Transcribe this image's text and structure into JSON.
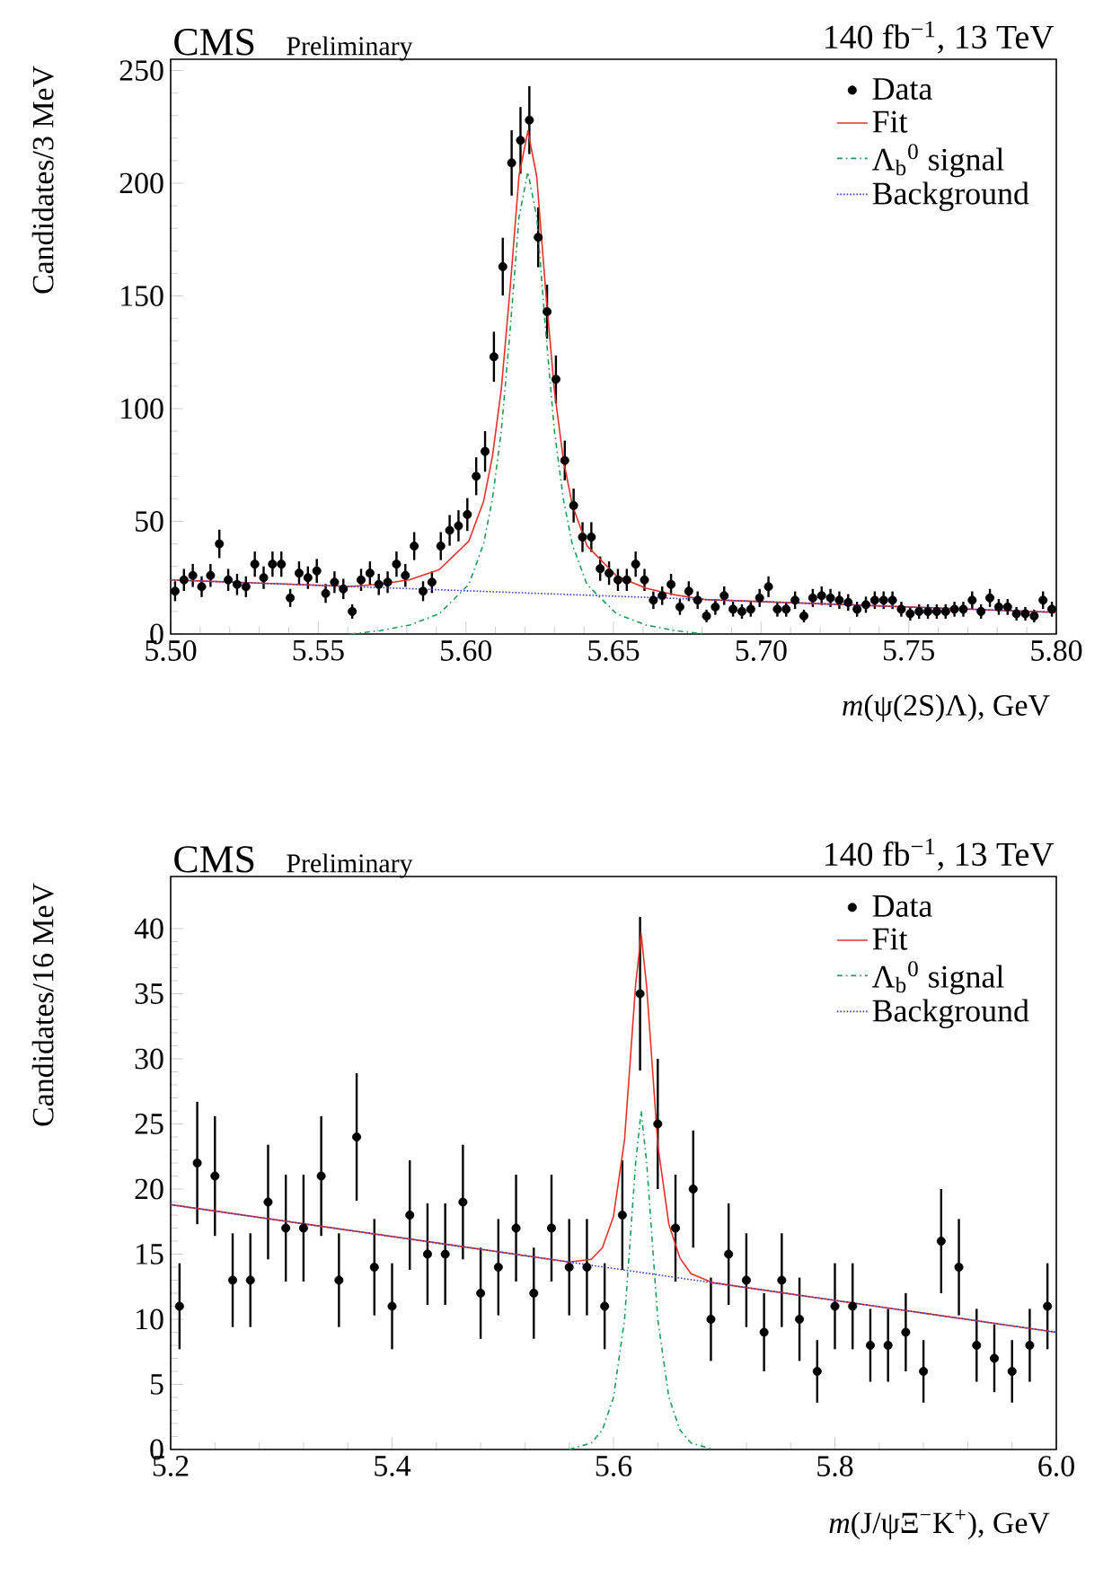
{
  "chart_data": [
    {
      "type": "scatter",
      "title": "CMS",
      "subtitle": "Preliminary",
      "annotations": [
        "140 fb$^{−1}$, 13 TeV"
      ],
      "xlabel": "*m*(ψ(2S)Λ), GeV",
      "ylabel": "Candidates/3 MeV",
      "xlim": [
        5.5,
        5.8
      ],
      "ylim": [
        0,
        255
      ],
      "xticks": [
        {
          "value": 5.5,
          "label": "5.50"
        },
        5.55,
        {
          "value": 5.6,
          "label": "5.60"
        },
        5.65,
        {
          "value": 5.7,
          "label": "5.70"
        },
        5.75,
        {
          "value": 5.8,
          "label": "5.80"
        }
      ],
      "yticks": [
        0,
        50,
        100,
        150,
        200,
        250
      ],
      "legend": "top right",
      "series": [
        {
          "name": "Data",
          "type": "scatter",
          "marker": "circle",
          "color": "#000000",
          "x": [
            5.5015,
            5.5045,
            5.5075,
            5.5105,
            5.5135,
            5.5165,
            5.5195,
            5.5225,
            5.5255,
            5.5285,
            5.5315,
            5.5345,
            5.5375,
            5.5405,
            5.5435,
            5.5465,
            5.5495,
            5.5525,
            5.5555,
            5.5585,
            5.5615,
            5.5645,
            5.5675,
            5.5705,
            5.5735,
            5.5765,
            5.5795,
            5.5825,
            5.5855,
            5.5885,
            5.5915,
            5.5945,
            5.5975,
            5.6005,
            5.6035,
            5.6065,
            5.6095,
            5.6125,
            5.6155,
            5.6185,
            5.6215,
            5.6245,
            5.6275,
            5.6305,
            5.6335,
            5.6365,
            5.6395,
            5.6425,
            5.6455,
            5.6485,
            5.6515,
            5.6545,
            5.6575,
            5.6605,
            5.6635,
            5.6665,
            5.6695,
            5.6725,
            5.6755,
            5.6785,
            5.6815,
            5.6845,
            5.6875,
            5.6905,
            5.6935,
            5.6965,
            5.6995,
            5.7025,
            5.7055,
            5.7085,
            5.7115,
            5.7145,
            5.7175,
            5.7205,
            5.7235,
            5.7265,
            5.7295,
            5.7325,
            5.7355,
            5.7385,
            5.7415,
            5.7445,
            5.7475,
            5.7505,
            5.7535,
            5.7565,
            5.7595,
            5.7625,
            5.7655,
            5.7685,
            5.7715,
            5.7745,
            5.7775,
            5.7805,
            5.7835,
            5.7865,
            5.7895,
            5.7925,
            5.7955,
            5.7985
          ],
          "values": [
            19,
            24,
            26,
            21,
            26,
            40,
            24,
            22,
            21,
            31,
            25,
            31,
            31,
            16,
            27,
            25,
            28,
            18,
            23,
            20,
            10,
            24,
            27,
            22,
            23,
            31,
            26,
            39,
            19,
            23,
            39,
            46,
            48,
            53,
            70,
            81,
            123,
            163,
            209,
            219,
            228,
            176,
            143,
            113,
            77,
            57,
            43,
            43,
            29,
            27,
            24,
            24,
            31,
            24,
            15,
            17,
            22,
            12,
            19,
            15,
            8,
            12,
            17,
            11,
            10,
            11,
            16,
            21,
            11,
            11,
            15,
            8,
            16,
            17,
            16,
            15,
            14,
            11,
            13,
            15,
            15,
            15,
            11,
            9,
            10,
            10,
            10,
            10,
            11,
            11,
            15,
            10,
            16,
            12,
            12,
            9,
            9,
            8,
            15,
            11
          ],
          "errors": [
            4.4,
            4.9,
            5.1,
            4.6,
            5.1,
            6.3,
            4.9,
            4.7,
            4.6,
            5.6,
            5,
            5.6,
            5.6,
            4,
            5.2,
            5,
            5.3,
            4.2,
            4.8,
            4.5,
            3.2,
            4.9,
            5.2,
            4.7,
            4.8,
            5.6,
            5.1,
            6.2,
            4.4,
            4.8,
            6.2,
            6.8,
            6.9,
            7.3,
            8.4,
            9,
            11.1,
            12.8,
            14.5,
            14.8,
            15.1,
            13.3,
            12,
            10.6,
            8.8,
            7.5,
            6.6,
            6.6,
            5.4,
            5.2,
            4.9,
            4.9,
            5.6,
            4.9,
            3.9,
            4.1,
            4.7,
            3.5,
            4.4,
            3.9,
            2.8,
            3.5,
            4.1,
            3.3,
            3.2,
            3.3,
            4,
            4.6,
            3.3,
            3.3,
            3.9,
            2.8,
            4,
            4.1,
            4,
            3.9,
            3.7,
            3.3,
            3.6,
            3.9,
            3.9,
            3.9,
            3.3,
            3,
            3.2,
            3.2,
            3.2,
            3.2,
            3.3,
            3.3,
            3.9,
            3.2,
            4,
            3.5,
            3.5,
            3,
            3,
            2.8,
            3.9,
            3.3
          ]
        },
        {
          "name": "Fit",
          "type": "line",
          "line_style": "solid",
          "color": "#e8302a",
          "x": [
            5.5,
            5.561,
            5.571,
            5.581,
            5.591,
            5.601,
            5.606,
            5.609,
            5.612,
            5.615,
            5.618,
            5.621,
            5.624,
            5.627,
            5.63,
            5.633,
            5.636,
            5.641,
            5.651,
            5.661,
            5.671,
            5.681,
            5.8
          ],
          "values": [
            24,
            21.1,
            22.1,
            24.1,
            28.6,
            41.2,
            58.9,
            78.8,
            108.6,
            153.5,
            203.3,
            223.2,
            203,
            152.9,
            107.8,
            77.6,
            57.5,
            39.2,
            25.8,
            20.3,
            17.3,
            15.3,
            9.6
          ]
        },
        {
          "name": "Λ$_{b}$$^{0}$ signal",
          "type": "line",
          "line_style": "dashdot",
          "color": "#1a9e55",
          "x": [
            5.561,
            5.571,
            5.581,
            5.591,
            5.601,
            5.606,
            5.609,
            5.612,
            5.615,
            5.618,
            5.621,
            5.624,
            5.627,
            5.63,
            5.633,
            5.636,
            5.641,
            5.651,
            5.661,
            5.671,
            5.681
          ],
          "values": [
            0,
            1.5,
            4,
            9,
            22,
            40,
            60,
            90,
            135,
            185,
            205,
            185,
            135,
            90,
            60,
            40,
            22,
            9,
            4,
            1.5,
            0
          ]
        },
        {
          "name": "Background",
          "type": "line",
          "line_style": "dotted",
          "color": "#3b3bcc",
          "x": [
            5.5,
            5.8
          ],
          "values": [
            24,
            9.6
          ]
        }
      ]
    },
    {
      "type": "scatter",
      "title": "CMS",
      "subtitle": "Preliminary",
      "annotations": [
        "140 fb$^{−1}$, 13 TeV"
      ],
      "xlabel": "*m*(J/ψΞ$^{−}$K$^{+}$), GeV",
      "ylabel": "Candidates/16 MeV",
      "xlim": [
        5.2,
        6.0
      ],
      "ylim": [
        0,
        44
      ],
      "xticks": [
        5.2,
        5.4,
        5.6,
        5.8,
        {
          "value": 6.0,
          "label": "6.0"
        }
      ],
      "yticks": [
        0,
        5,
        10,
        15,
        20,
        25,
        30,
        35,
        40
      ],
      "legend": "top right",
      "series": [
        {
          "name": "Data",
          "type": "scatter",
          "marker": "circle",
          "color": "#000000",
          "x": [
            5.208,
            5.224,
            5.24,
            5.256,
            5.272,
            5.288,
            5.304,
            5.32,
            5.336,
            5.352,
            5.368,
            5.384,
            5.4,
            5.416,
            5.432,
            5.448,
            5.464,
            5.48,
            5.496,
            5.512,
            5.528,
            5.544,
            5.56,
            5.576,
            5.592,
            5.608,
            5.624,
            5.64,
            5.656,
            5.672,
            5.688,
            5.704,
            5.72,
            5.736,
            5.752,
            5.768,
            5.784,
            5.8,
            5.816,
            5.832,
            5.848,
            5.864,
            5.88,
            5.896,
            5.912,
            5.928,
            5.944,
            5.96,
            5.976,
            5.992
          ],
          "values": [
            11,
            22,
            21,
            13,
            13,
            19,
            17,
            17,
            21,
            13,
            24,
            14,
            11,
            18,
            15,
            15,
            19,
            12,
            14,
            17,
            12,
            17,
            14,
            14,
            11,
            18,
            35,
            25,
            17,
            20,
            10,
            15,
            13,
            9,
            13,
            10,
            6,
            11,
            11,
            8,
            8,
            9,
            6,
            16,
            14,
            8,
            7,
            6,
            8,
            11
          ],
          "errors": [
            3.3,
            4.7,
            4.6,
            3.6,
            3.6,
            4.4,
            4.1,
            4.1,
            4.6,
            3.6,
            4.9,
            3.7,
            3.3,
            4.2,
            3.9,
            3.9,
            4.4,
            3.5,
            3.7,
            4.1,
            3.5,
            4.1,
            3.7,
            3.7,
            3.3,
            4.2,
            5.9,
            5,
            4.1,
            4.5,
            3.2,
            3.9,
            3.6,
            3,
            3.6,
            3.2,
            2.4,
            3.3,
            3.3,
            2.8,
            2.8,
            3,
            2.4,
            4,
            3.7,
            2.8,
            2.6,
            2.4,
            2.8,
            3.3
          ]
        },
        {
          "name": "Fit",
          "type": "line",
          "line_style": "solid",
          "color": "#e8302a",
          "x": [
            5.2,
            5.56,
            5.58,
            5.59,
            5.6,
            5.61,
            5.615,
            5.62,
            5.625,
            5.63,
            5.635,
            5.64,
            5.65,
            5.66,
            5.67,
            5.69,
            6.0
          ],
          "values": [
            18.8,
            14.4,
            14.6,
            15.5,
            17.9,
            23.8,
            29.7,
            35.7,
            39.6,
            35.5,
            29.5,
            23.4,
            17.3,
            14.7,
            13.5,
            12.8,
            9.0
          ]
        },
        {
          "name": "Λ$_{b}$$^{0}$ signal",
          "type": "line",
          "line_style": "dashdot",
          "color": "#1a9e55",
          "x": [
            5.56,
            5.58,
            5.59,
            5.6,
            5.61,
            5.615,
            5.62,
            5.625,
            5.63,
            5.635,
            5.64,
            5.65,
            5.66,
            5.67,
            5.69
          ],
          "values": [
            0,
            0.5,
            1.5,
            4,
            10,
            16,
            22,
            26,
            22,
            16,
            10,
            4,
            1.5,
            0.5,
            0
          ]
        },
        {
          "name": "Background",
          "type": "line",
          "line_style": "dotted",
          "color": "#3b3bcc",
          "x": [
            5.2,
            6.0
          ],
          "values": [
            18.8,
            9.0
          ]
        }
      ]
    }
  ]
}
